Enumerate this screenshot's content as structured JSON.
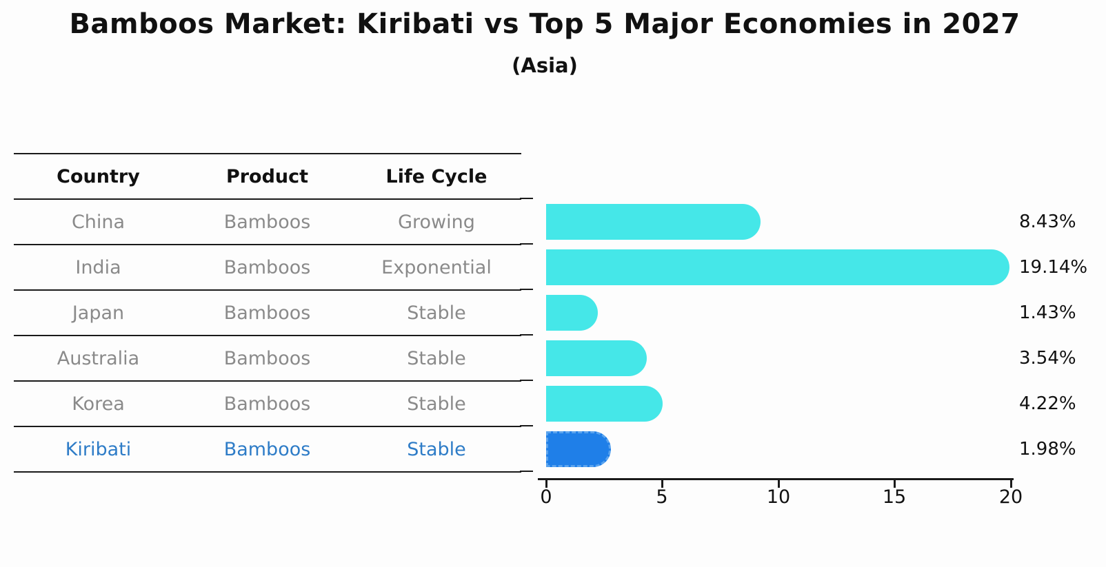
{
  "title": "Bamboos Market: Kiribati vs Top 5 Major Economies in 2027",
  "subtitle": "(Asia)",
  "table": {
    "headers": [
      "Country",
      "Product",
      "Life Cycle"
    ],
    "rows": [
      {
        "country": "China",
        "product": "Bamboos",
        "life_cycle": "Growing",
        "highlight": false
      },
      {
        "country": "India",
        "product": "Bamboos",
        "life_cycle": "Exponential",
        "highlight": false
      },
      {
        "country": "Japan",
        "product": "Bamboos",
        "life_cycle": "Stable",
        "highlight": false
      },
      {
        "country": "Australia",
        "product": "Bamboos",
        "life_cycle": "Stable",
        "highlight": false
      },
      {
        "country": "Korea",
        "product": "Bamboos",
        "life_cycle": "Stable",
        "highlight": false
      },
      {
        "country": "Kiribati",
        "product": "Bamboos",
        "life_cycle": "Stable",
        "highlight": true
      }
    ]
  },
  "chart_data": {
    "type": "bar",
    "orientation": "horizontal",
    "title": "Bamboos Market: Kiribati vs Top 5 Major Economies in 2027 (Asia)",
    "categories": [
      "China",
      "India",
      "Japan",
      "Australia",
      "Korea",
      "Kiribati"
    ],
    "values": [
      8.43,
      19.14,
      1.43,
      3.54,
      4.22,
      1.98
    ],
    "value_labels": [
      "8.43%",
      "19.14%",
      "1.43%",
      "3.54%",
      "4.22%",
      "1.98%"
    ],
    "xlabel": "",
    "ylabel": "",
    "xlim": [
      0,
      20
    ],
    "x_ticks": [
      "0",
      "5",
      "10",
      "15",
      "20"
    ],
    "grid": false,
    "legend_position": "none",
    "bar_color": "#45e7e8",
    "highlight_index": 5,
    "highlight_color": "#1f7fe8",
    "highlight_border_color": "#5ba4ee",
    "highlight_text_color": "#2e7cc7"
  }
}
